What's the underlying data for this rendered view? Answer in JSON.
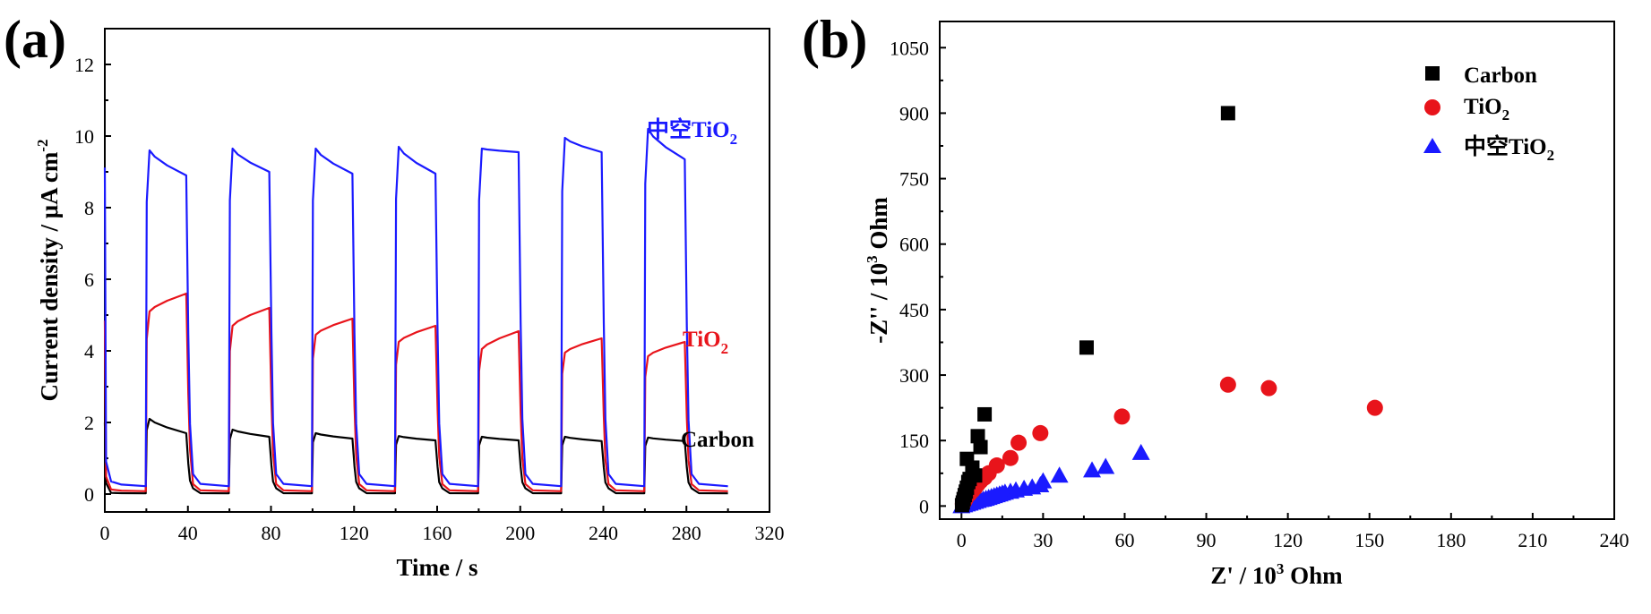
{
  "chart_data": [
    {
      "panel_label": "(a)",
      "type": "line",
      "xlabel": "Time / s",
      "ylabel": "Current density / μA cm",
      "ylabel_sup": "-2",
      "xlim": [
        0,
        320
      ],
      "ylim": [
        -0.5,
        13
      ],
      "xticks": [
        0,
        40,
        80,
        120,
        160,
        200,
        240,
        280,
        320
      ],
      "yticks": [
        0,
        2,
        4,
        6,
        8,
        10,
        12
      ],
      "grid": false,
      "light_on_windows": [
        [
          20,
          40
        ],
        [
          60,
          80
        ],
        [
          100,
          120
        ],
        [
          140,
          160
        ],
        [
          180,
          200
        ],
        [
          220,
          240
        ],
        [
          260,
          280
        ]
      ],
      "series": [
        {
          "name": "Carbon",
          "color": "#000000",
          "on_values": [
            [
              2.1,
              1.7
            ],
            [
              1.8,
              1.6
            ],
            [
              1.7,
              1.55
            ],
            [
              1.62,
              1.5
            ],
            [
              1.6,
              1.5
            ],
            [
              1.6,
              1.48
            ],
            [
              1.58,
              1.48
            ]
          ],
          "off_value": 0.02
        },
        {
          "name": "TiO",
          "sub": "2",
          "color": "#e8141b",
          "on_values": [
            [
              5.1,
              5.6
            ],
            [
              4.7,
              5.2
            ],
            [
              4.45,
              4.9
            ],
            [
              4.25,
              4.7
            ],
            [
              4.05,
              4.55
            ],
            [
              3.95,
              4.35
            ],
            [
              3.85,
              4.25
            ]
          ],
          "off_value": 0.08
        },
        {
          "name": "中空TiO",
          "sub": "2",
          "color": "#1a1aff",
          "on_values": [
            [
              9.6,
              8.9
            ],
            [
              9.65,
              9.0
            ],
            [
              9.65,
              8.95
            ],
            [
              9.7,
              8.95
            ],
            [
              9.65,
              9.55
            ],
            [
              9.95,
              9.55
            ],
            [
              10.2,
              9.35
            ]
          ],
          "off_value": 0.22
        }
      ],
      "annotations": [
        {
          "text": "中空TiO",
          "sub": "2",
          "series": "中空TiO2"
        },
        {
          "text": "TiO",
          "sub": "2",
          "series": "TiO2"
        },
        {
          "text": "Carbon",
          "series": "Carbon"
        }
      ]
    },
    {
      "panel_label": "(b)",
      "type": "scatter",
      "xlabel": "Z' / 10",
      "xlabel_sup": "3",
      "xlabel_unit": " Ohm",
      "ylabel": "-Z'' / 10",
      "ylabel_sup": "3",
      "ylabel_unit": " Ohm",
      "xlim": [
        -8,
        240
      ],
      "ylim": [
        -30,
        1110
      ],
      "xticks": [
        0,
        30,
        60,
        90,
        120,
        150,
        180,
        210,
        240
      ],
      "yticks": [
        0,
        150,
        300,
        450,
        600,
        750,
        900,
        1050
      ],
      "grid": false,
      "legend_position": "top-right",
      "series": [
        {
          "name": "Carbon",
          "marker": "square",
          "color": "#000000",
          "points": [
            [
              0.2,
              2
            ],
            [
              0.5,
              8
            ],
            [
              0.8,
              16
            ],
            [
              1.2,
              25
            ],
            [
              1.6,
              33
            ],
            [
              2,
              42
            ],
            [
              2.5,
              55
            ],
            [
              3,
              62
            ],
            [
              2,
              108
            ],
            [
              4,
              88
            ],
            [
              5,
              70
            ],
            [
              6,
              160
            ],
            [
              7,
              135
            ],
            [
              8.5,
              210
            ],
            [
              46,
              363
            ],
            [
              98,
              900
            ]
          ]
        },
        {
          "name": "TiO",
          "sub": "2",
          "marker": "circle",
          "color": "#e8141b",
          "points": [
            [
              0.5,
              5
            ],
            [
              1,
              10
            ],
            [
              1.5,
              16
            ],
            [
              2,
              22
            ],
            [
              3,
              28
            ],
            [
              4,
              35
            ],
            [
              5,
              42
            ],
            [
              6,
              50
            ],
            [
              7,
              57
            ],
            [
              8.5,
              65
            ],
            [
              10,
              75
            ],
            [
              13,
              93
            ],
            [
              18,
              110
            ],
            [
              21,
              145
            ],
            [
              29,
              167
            ],
            [
              59,
              205
            ],
            [
              98,
              278
            ],
            [
              113,
              270
            ],
            [
              152,
              225
            ]
          ]
        },
        {
          "name": "中空TiO",
          "sub": "2",
          "marker": "triangle",
          "color": "#1a1aff",
          "points": [
            [
              0,
              0
            ],
            [
              1,
              2
            ],
            [
              2,
              4
            ],
            [
              3,
              6
            ],
            [
              4,
              8
            ],
            [
              5,
              10
            ],
            [
              6,
              12
            ],
            [
              7,
              14
            ],
            [
              8,
              15
            ],
            [
              9,
              17
            ],
            [
              10,
              19
            ],
            [
              11,
              21
            ],
            [
              12,
              23
            ],
            [
              13,
              25
            ],
            [
              14,
              27
            ],
            [
              15,
              29
            ],
            [
              16,
              31
            ],
            [
              18,
              33
            ],
            [
              20,
              36
            ],
            [
              23,
              40
            ],
            [
              26,
              43
            ],
            [
              29,
              48
            ],
            [
              30,
              57
            ],
            [
              36,
              70
            ],
            [
              48,
              82
            ],
            [
              53,
              90
            ],
            [
              66,
              122
            ]
          ]
        }
      ]
    }
  ]
}
